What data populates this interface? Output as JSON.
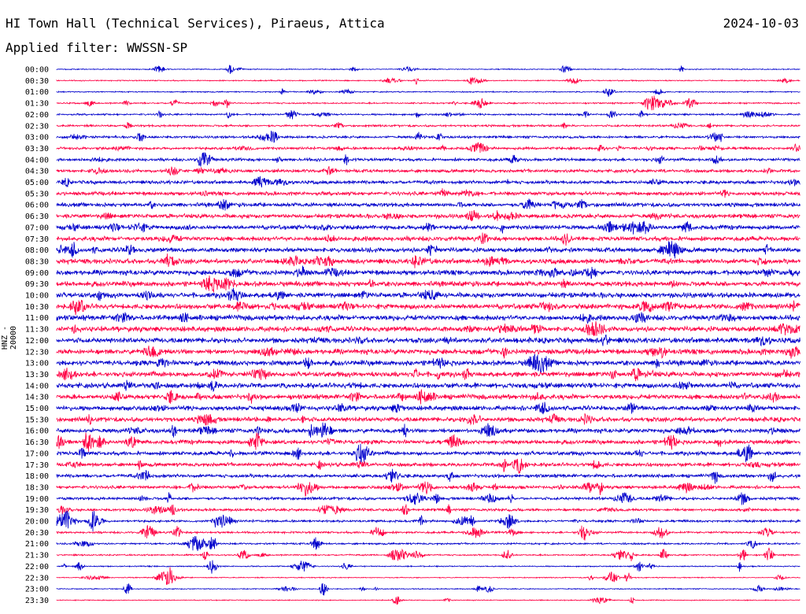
{
  "header": {
    "station": "HI Town Hall (Technical Services), Piraeus, Attica",
    "date": "2024-10-03",
    "filter": "Applied filter: WWSSN-SP"
  },
  "colors": {
    "even_trace": "#0000cc",
    "odd_trace": "#ff0044",
    "text": "#000000"
  },
  "chart_data": {
    "type": "line",
    "title": "HI Town Hall (Technical Services), Piraeus, Attica",
    "ylabel": "HNZ - 20000",
    "xlabel": "",
    "rows": [
      "00:00",
      "00:30",
      "01:00",
      "01:30",
      "02:00",
      "02:30",
      "03:00",
      "03:30",
      "04:00",
      "04:30",
      "05:00",
      "05:30",
      "06:00",
      "06:30",
      "07:00",
      "07:30",
      "08:00",
      "08:30",
      "09:00",
      "09:30",
      "10:00",
      "10:30",
      "11:00",
      "11:30",
      "12:00",
      "12:30",
      "13:00",
      "13:30",
      "14:00",
      "14:30",
      "15:00",
      "15:30",
      "16:00",
      "16:30",
      "17:00",
      "17:30",
      "18:00",
      "18:30",
      "19:00",
      "19:30",
      "20:00",
      "20:30",
      "21:00",
      "21:30",
      "22:00",
      "22:30",
      "23:00",
      "23:30"
    ],
    "grid": false,
    "legend": "none"
  }
}
